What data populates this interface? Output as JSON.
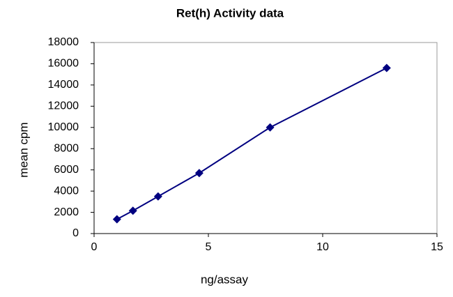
{
  "chart_data": {
    "type": "line",
    "title": "Ret(h) Activity data",
    "x_label": "ng/assay",
    "y_label": "mean cpm",
    "x": [
      1,
      1.7,
      2.8,
      4.6,
      7.7,
      12.8
    ],
    "series": [
      {
        "color": "#000080",
        "values": [
          1350,
          2150,
          3500,
          5700,
          10000,
          15600
        ]
      }
    ],
    "xlim": [
      0,
      15
    ],
    "xticks": [
      0,
      5,
      10,
      15
    ],
    "ylim": [
      0,
      18000
    ],
    "yticks": [
      0,
      2000,
      4000,
      6000,
      8000,
      10000,
      12000,
      14000,
      16000,
      18000
    ],
    "grid": false
  }
}
